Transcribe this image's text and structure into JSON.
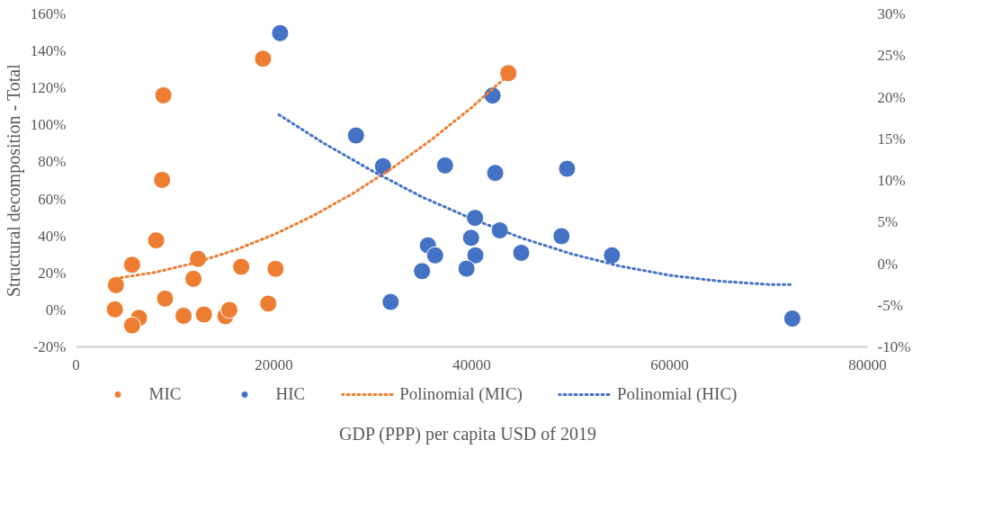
{
  "chart_data": {
    "type": "scatter",
    "xlabel": "GDP (PPP) per capita USD of 2019",
    "ylabel": "Structural decomposition - Total",
    "legend": "bottom",
    "grid": false,
    "xlim": [
      0,
      80000
    ],
    "xticks": [
      0,
      20000,
      40000,
      60000,
      80000
    ],
    "ylim": [
      -20,
      160
    ],
    "yticks": [
      {
        "value": -20,
        "label": "-20%"
      },
      {
        "value": 0,
        "label": "0%"
      },
      {
        "value": 20,
        "label": "20%"
      },
      {
        "value": 40,
        "label": "40%"
      },
      {
        "value": 60,
        "label": "60%"
      },
      {
        "value": 80,
        "label": "80%"
      },
      {
        "value": 100,
        "label": "100%"
      },
      {
        "value": 120,
        "label": "120%"
      },
      {
        "value": 140,
        "label": "140%"
      },
      {
        "value": 160,
        "label": "160%"
      }
    ],
    "y2lim": [
      -10,
      30
    ],
    "y2ticks": [
      {
        "value": -10,
        "label": "-10%"
      },
      {
        "value": -5,
        "label": "-5%"
      },
      {
        "value": 0,
        "label": "0%"
      },
      {
        "value": 5,
        "label": "5%"
      },
      {
        "value": 10,
        "label": "10%"
      },
      {
        "value": 15,
        "label": "15%"
      },
      {
        "value": 20,
        "label": "20%"
      },
      {
        "value": 25,
        "label": "25%"
      },
      {
        "value": 30,
        "label": "30%"
      }
    ],
    "series": [
      {
        "name": "MIC",
        "marker": "circle",
        "color": "#ed7d31",
        "x": [
          3930,
          4030,
          5670,
          6370,
          5670,
          8100,
          8700,
          8830,
          9000,
          10870,
          11870,
          12330,
          12930,
          15100,
          15500,
          16700,
          18900,
          20170,
          19430,
          43700
        ],
        "values": [
          0.3,
          13.4,
          24.4,
          -4.3,
          -8.4,
          37.6,
          70.3,
          116,
          6.1,
          -3.2,
          16.8,
          27.6,
          -2.5,
          -3.4,
          0,
          23.3,
          135.8,
          22.2,
          3.4,
          128
        ]
      },
      {
        "name": "HIC",
        "marker": "circle",
        "axis": "y2",
        "color": "#4472c4",
        "x": [
          20630,
          28300,
          31030,
          37300,
          42370,
          49630,
          42100,
          40330,
          42830,
          39930,
          49070,
          35570,
          36300,
          40370,
          45000,
          54170,
          34970,
          39470,
          31800,
          72400
        ],
        "values": [
          27.7,
          15.4,
          11.7,
          11.8,
          10.9,
          11.4,
          20.2,
          5.5,
          4.0,
          3.1,
          3.3,
          2.2,
          1.0,
          1.0,
          1.3,
          1.0,
          -0.9,
          -0.6,
          -4.6,
          -6.6
        ]
      },
      {
        "name": "Polinomial (MIC)",
        "type": "line",
        "line_style": "dotted",
        "color": "#ed7d31",
        "x": [
          4000,
          8000,
          12000,
          16000,
          20000,
          24000,
          28000,
          32000,
          36000,
          40000,
          43700
        ],
        "values": [
          17.0,
          20.3,
          25.4,
          32.2,
          40.7,
          51.0,
          63.0,
          76.8,
          92.3,
          109.5,
          127
        ]
      },
      {
        "name": "Polinomial (HIC)",
        "type": "line",
        "line_style": "dotted",
        "axis": "y2",
        "color": "#4472c4",
        "x": [
          20500,
          25000,
          30000,
          35000,
          40000,
          45000,
          50000,
          55000,
          60000,
          65000,
          70000,
          72400
        ],
        "values": [
          17.9,
          14.5,
          11.1,
          8.0,
          5.4,
          3.1,
          1.2,
          -0.3,
          -1.4,
          -2.1,
          -2.5,
          -2.5
        ]
      }
    ]
  }
}
